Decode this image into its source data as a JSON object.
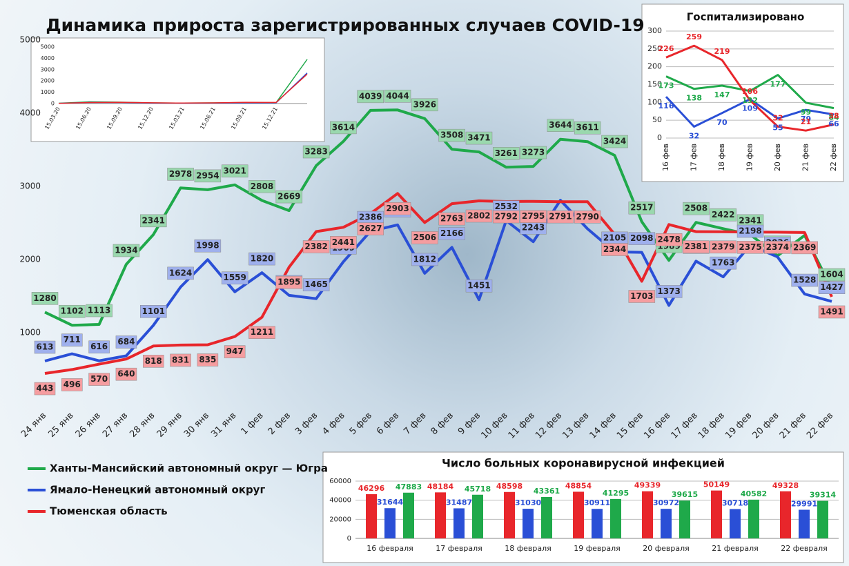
{
  "chart_data": [
    {
      "type": "line",
      "title": "Динамика прироста зарегистрированных случаев COVID-19",
      "categories": [
        "24 янв",
        "25 янв",
        "26 янв",
        "27 янв",
        "28 янв",
        "29 янв",
        "30 янв",
        "31 янв",
        "1 фев",
        "2 фев",
        "3 фев",
        "4 фев",
        "5 фев",
        "6 фев",
        "7 фев",
        "8 фев",
        "9 фев",
        "10 фев",
        "11 фев",
        "12 фев",
        "13 фев",
        "14 фев",
        "15 фев",
        "16 фев",
        "17 фев",
        "18 фев",
        "19 фев",
        "20 фев",
        "21 фев",
        "22 фев"
      ],
      "series": [
        {
          "name": "Ханты-Мансийский автономный округ — Югра",
          "color": "#1fa94a",
          "values": [
            1280,
            1102,
            1113,
            1934,
            2341,
            2978,
            2954,
            3021,
            2808,
            2669,
            3283,
            3614,
            4039,
            4044,
            3926,
            3508,
            3471,
            3261,
            3273,
            3644,
            3611,
            3424,
            2517,
            1989,
            2508,
            2422,
            2341,
            2050,
            2330,
            1604
          ],
          "value_labels": [
            "1280",
            "1102",
            "1113",
            "1934",
            "2341",
            "2978",
            "2954",
            "3021",
            "2808",
            "2669",
            "3283",
            "3614",
            "4039",
            "4044",
            "3926",
            "3508",
            "3471",
            "3261",
            "3273",
            "3644",
            "3611",
            "3424",
            "2517",
            "1989",
            "2508",
            "2422",
            "2341",
            "2050",
            null,
            "1604"
          ]
        },
        {
          "name": "Ямало-Ненецкий автономный округ",
          "color": "#2a4fd6",
          "values": [
            613,
            711,
            616,
            684,
            1101,
            1624,
            1998,
            1559,
            1820,
            1510,
            1465,
            1969,
            2386,
            2474,
            1812,
            2166,
            1451,
            2532,
            2243,
            2810,
            2420,
            2105,
            2098,
            1373,
            1978,
            1763,
            2198,
            2036,
            1528,
            1427
          ],
          "value_labels": [
            "613",
            "711",
            "616",
            "684",
            "1101",
            "1624",
            "1998",
            "1559",
            "1820",
            "1510",
            "1465",
            "1969",
            "2386",
            "2474",
            "1812",
            "2166",
            "1451",
            "2532",
            "2243",
            null,
            null,
            "2105",
            "2098",
            "1373",
            "1978",
            "1763",
            "2198",
            "2036",
            "1528",
            "1427"
          ]
        },
        {
          "name": "Тюменская область",
          "color": "#e8262b",
          "values": [
            443,
            496,
            570,
            640,
            818,
            831,
            835,
            947,
            1211,
            1895,
            2382,
            2441,
            2627,
            2903,
            2506,
            2763,
            2802,
            2792,
            2795,
            2791,
            2790,
            2344,
            1703,
            2478,
            2381,
            2379,
            2375,
            2374,
            2369,
            1491
          ]
        }
      ],
      "ylim": [
        0,
        5000
      ],
      "yticks": [
        1000,
        2000,
        3000,
        4000,
        5000
      ],
      "grid": false,
      "legend": "bottom-left"
    },
    {
      "type": "line",
      "categories": [
        "15.03.20",
        "15.06.20",
        "15.09.20",
        "15.12.20",
        "15.03.21",
        "15.06.21",
        "15.09.21",
        "15.12.21",
        null
      ],
      "series": [
        {
          "color": "#1fa94a",
          "values": [
            30,
            150,
            120,
            60,
            40,
            60,
            90,
            80,
            3900
          ]
        },
        {
          "color": "#2a4fd6",
          "values": [
            20,
            100,
            90,
            50,
            30,
            40,
            60,
            70,
            2700
          ]
        },
        {
          "color": "#e8262b",
          "values": [
            20,
            90,
            110,
            70,
            40,
            60,
            110,
            100,
            2600
          ]
        }
      ],
      "ylim": [
        0,
        5000
      ],
      "yticks": [
        0,
        1000,
        2000,
        3000,
        4000,
        5000
      ],
      "grid": false
    },
    {
      "type": "line",
      "title": "Госпитализировано",
      "categories": [
        "16 фев",
        "17 фев",
        "18 фев",
        "19 фев",
        "20 фев",
        "21 фев",
        "22 фев"
      ],
      "series": [
        {
          "color": "#1fa94a",
          "values": [
            173,
            138,
            147,
            132,
            177,
            99,
            84
          ]
        },
        {
          "color": "#2a4fd6",
          "values": [
            116,
            32,
            70,
            109,
            55,
            79,
            66
          ]
        },
        {
          "color": "#e8262b",
          "values": [
            226,
            259,
            219,
            106,
            32,
            21,
            38
          ]
        }
      ],
      "ylim": [
        0,
        300
      ],
      "yticks": [
        0,
        50,
        100,
        150,
        200,
        250,
        300
      ],
      "grid": true
    },
    {
      "type": "bar",
      "title": "Число больных коронавирусной инфекцией",
      "categories": [
        "16 февраля",
        "17 февраля",
        "18 февраля",
        "19 февраля",
        "20 февраля",
        "21 февраля",
        "22 февраля"
      ],
      "series": [
        {
          "color": "#e8262b",
          "values": [
            46296,
            48184,
            48598,
            48854,
            49339,
            50149,
            49328
          ]
        },
        {
          "color": "#2a4fd6",
          "values": [
            31644,
            31487,
            31030,
            30911,
            30972,
            30718,
            29991
          ]
        },
        {
          "color": "#1fa94a",
          "values": [
            47883,
            45718,
            43361,
            41295,
            39615,
            40582,
            39314
          ]
        }
      ],
      "ylim": [
        0,
        60000
      ],
      "yticks": [
        0,
        20000,
        40000,
        60000
      ],
      "grid": true
    }
  ]
}
